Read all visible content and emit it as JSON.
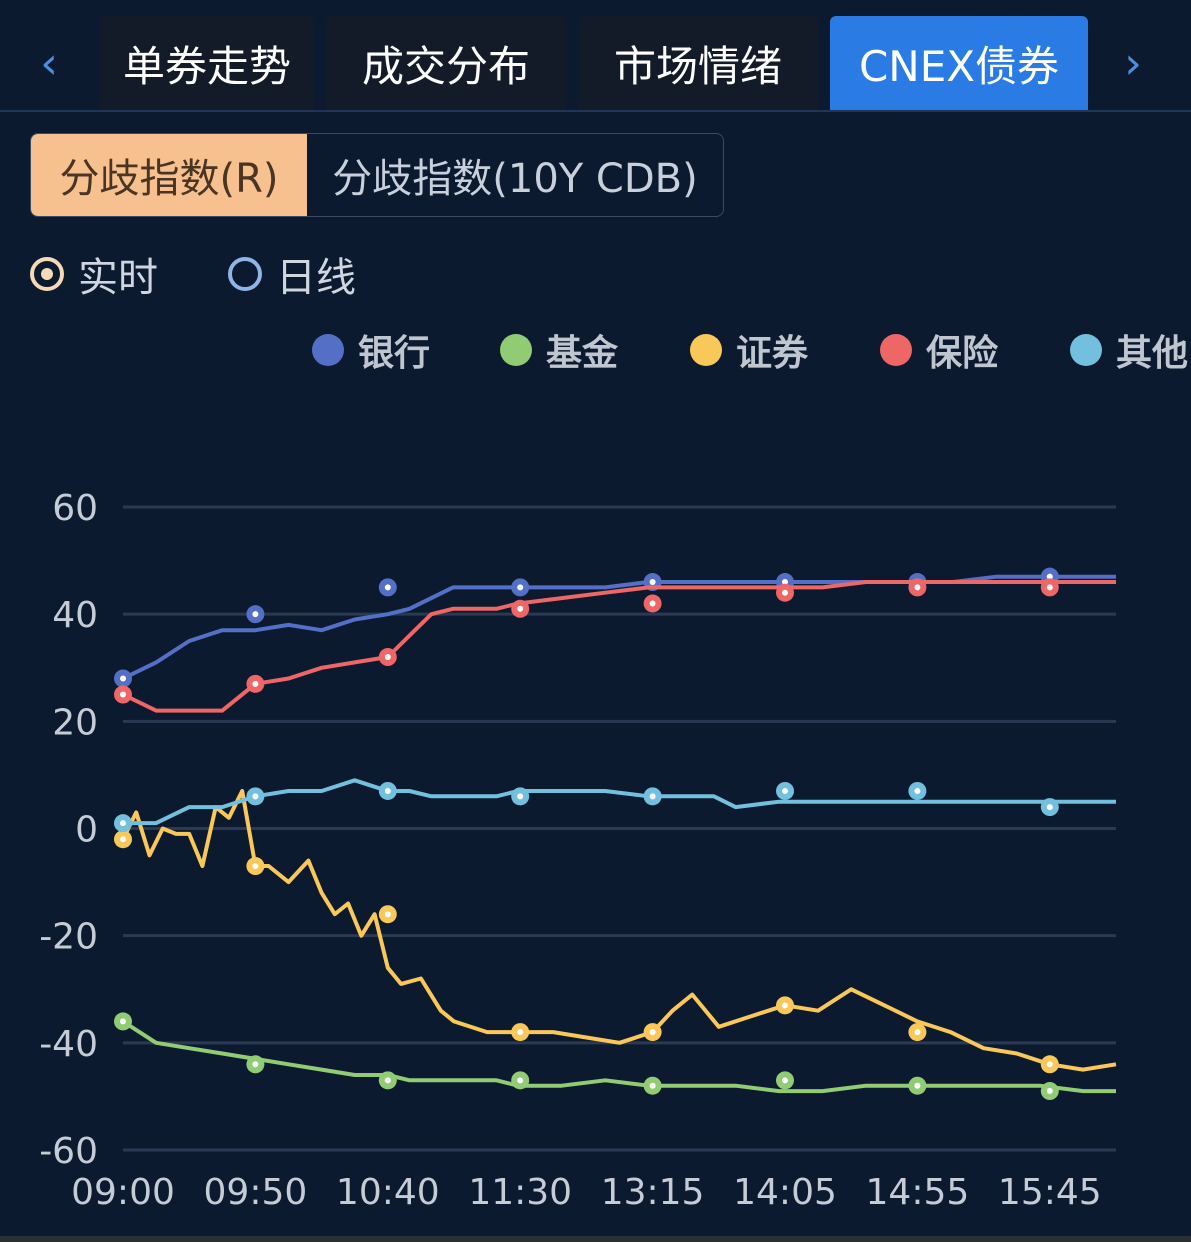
{
  "tabs": {
    "items": [
      "单券走势",
      "成交分布",
      "市场情绪",
      "CNEX债券"
    ],
    "active": 3,
    "prev_glyph": "‹",
    "next_glyph": "›"
  },
  "segment": {
    "options": [
      "分歧指数(R)",
      "分歧指数(10Y CDB)"
    ],
    "selected": 0
  },
  "radios": {
    "options": [
      "实时",
      "日线"
    ],
    "selected": 0
  },
  "colors": {
    "bank": "#5470c6",
    "fund": "#91cc75",
    "securities": "#fac858",
    "insurance": "#ee6666",
    "other": "#73c0de",
    "active_tab": "#2a7be4",
    "segment_on": "#f6c08f"
  },
  "chart_data": {
    "type": "line",
    "legend": [
      "银行",
      "基金",
      "证券",
      "保险",
      "其他"
    ],
    "x_tick_labels": [
      "09:00",
      "09:50",
      "10:40",
      "11:30",
      "13:15",
      "14:05",
      "14:55",
      "15:45"
    ],
    "ylim": [
      -60,
      60
    ],
    "y_ticks": [
      60,
      40,
      20,
      0,
      -20,
      -40,
      -60
    ],
    "grid": true,
    "series": [
      {
        "name": "银行",
        "color_key": "bank",
        "x": [
          0,
          0.5,
          1,
          1.5,
          2,
          2.5,
          3,
          3.5,
          4,
          5,
          6,
          7,
          8,
          9,
          10,
          12,
          14,
          16,
          18,
          19,
          20,
          22,
          24,
          26,
          28,
          30,
          32,
          34,
          36,
          37.5
        ],
        "y": [
          28,
          31,
          35,
          37,
          37,
          38,
          37,
          39,
          40,
          41,
          43,
          45,
          45,
          45,
          45,
          45,
          45,
          46,
          46,
          46,
          46,
          46,
          46,
          46,
          46,
          46,
          47,
          47,
          47,
          47
        ],
        "markers": [
          [
            0,
            28
          ],
          [
            2,
            40
          ],
          [
            4,
            45
          ],
          [
            6,
            45
          ],
          [
            8,
            46
          ],
          [
            10,
            46
          ],
          [
            12,
            46
          ],
          [
            14,
            47
          ]
        ]
      },
      {
        "name": "基金",
        "color_key": "fund",
        "x": [
          0,
          0.5,
          1,
          1.5,
          2,
          2.5,
          3,
          3.5,
          4,
          5,
          6,
          7,
          8,
          9,
          10,
          12,
          14,
          16,
          18,
          19,
          20,
          22,
          24,
          26,
          28,
          30,
          32,
          34,
          36,
          37.5
        ],
        "y": [
          -36,
          -40,
          -41,
          -42,
          -43,
          -44,
          -45,
          -46,
          -46,
          -47,
          -47,
          -47,
          -47,
          -47,
          -48,
          -48,
          -47,
          -48,
          -48,
          -48,
          -48,
          -49,
          -49,
          -48,
          -48,
          -48,
          -48,
          -48,
          -49,
          -49
        ],
        "markers": [
          [
            0,
            -36
          ],
          [
            2,
            -44
          ],
          [
            4,
            -47
          ],
          [
            6,
            -47
          ],
          [
            8,
            -48
          ],
          [
            10,
            -47
          ],
          [
            12,
            -48
          ],
          [
            14,
            -49
          ]
        ]
      },
      {
        "name": "证券",
        "color_key": "securities",
        "x": [
          0,
          0.2,
          0.4,
          0.6,
          0.8,
          1,
          1.2,
          1.4,
          1.6,
          1.8,
          2,
          2.2,
          2.5,
          2.8,
          3,
          3.2,
          3.4,
          3.6,
          3.8,
          4,
          4.2,
          4.5,
          4.8,
          5,
          5.5,
          6,
          6.5,
          7,
          7.5,
          8,
          8.3,
          8.6,
          9,
          9.5,
          10,
          10.5,
          11,
          11.5,
          12,
          12.5,
          13,
          13.5,
          14,
          14.5,
          15
        ],
        "y": [
          -2,
          3,
          -5,
          0,
          -1,
          -1,
          -7,
          4,
          2,
          7,
          -7,
          -7,
          -10,
          -6,
          -12,
          -16,
          -14,
          -20,
          -16,
          -26,
          -29,
          -28,
          -34,
          -36,
          -38,
          -38,
          -38,
          -39,
          -40,
          -38,
          -34,
          -31,
          -37,
          -35,
          -33,
          -34,
          -30,
          -33,
          -36,
          -38,
          -41,
          -42,
          -44,
          -45,
          -44
        ],
        "markers": [
          [
            0,
            -2
          ],
          [
            2,
            -7
          ],
          [
            4,
            -16
          ],
          [
            6,
            -38
          ],
          [
            8,
            -38
          ],
          [
            10,
            -33
          ],
          [
            12,
            -38
          ],
          [
            14,
            -44
          ]
        ]
      },
      {
        "name": "保险",
        "color_key": "insurance",
        "x": [
          0,
          0.5,
          1,
          1.5,
          2,
          2.5,
          3,
          3.5,
          4,
          5,
          6,
          7,
          8,
          9,
          10,
          12,
          14,
          16,
          18,
          19,
          20,
          22,
          24,
          26,
          28,
          30,
          32,
          34,
          36,
          37.5
        ],
        "y": [
          25,
          22,
          22,
          22,
          27,
          28,
          30,
          31,
          32,
          36,
          40,
          41,
          41,
          41,
          42,
          43,
          44,
          45,
          45,
          45,
          45,
          45,
          45,
          46,
          46,
          46,
          46,
          46,
          46,
          46
        ],
        "markers": [
          [
            0,
            25
          ],
          [
            2,
            27
          ],
          [
            4,
            32
          ],
          [
            6,
            41
          ],
          [
            8,
            42
          ],
          [
            10,
            44
          ],
          [
            12,
            45
          ],
          [
            14,
            45
          ]
        ]
      },
      {
        "name": "其他",
        "color_key": "other",
        "x": [
          0,
          0.5,
          1,
          1.5,
          2,
          2.5,
          3,
          3.5,
          4,
          5,
          6,
          7,
          8,
          9,
          10,
          12,
          14,
          16,
          18,
          19,
          20,
          22,
          24,
          26,
          28,
          30,
          32,
          34,
          36,
          37.5
        ],
        "y": [
          1,
          1,
          4,
          4,
          6,
          7,
          7,
          9,
          7,
          7,
          6,
          6,
          6,
          6,
          7,
          7,
          7,
          6,
          6,
          6,
          4,
          5,
          5,
          5,
          5,
          5,
          5,
          5,
          5,
          5
        ],
        "markers": [
          [
            0,
            1
          ],
          [
            2,
            6
          ],
          [
            4,
            7
          ],
          [
            6,
            6
          ],
          [
            8,
            6
          ],
          [
            10,
            7
          ],
          [
            12,
            7
          ],
          [
            14,
            4
          ]
        ]
      }
    ]
  }
}
